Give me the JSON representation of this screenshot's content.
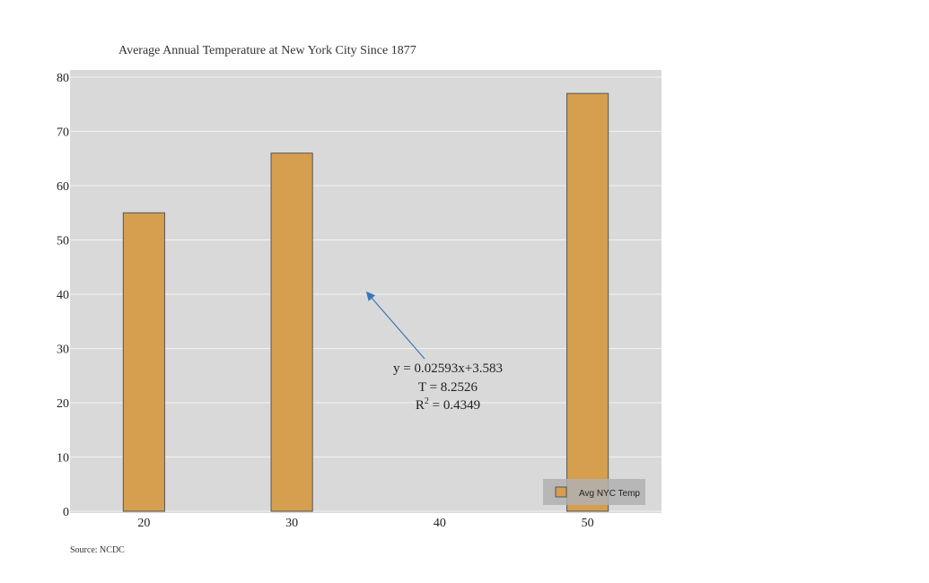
{
  "chart_data": {
    "type": "bar",
    "title": "Average Annual Temperature at New York City Since 1877",
    "xlabel": "",
    "ylabel": "",
    "x": [
      20,
      30,
      50
    ],
    "x_ticks": [
      "20",
      "30",
      "40",
      "50"
    ],
    "x_tick_values": [
      20,
      30,
      40,
      50
    ],
    "xlim": [
      15,
      55
    ],
    "y_ticks": [
      "0",
      "10",
      "20",
      "30",
      "40",
      "50",
      "60",
      "70",
      "80"
    ],
    "ylim": [
      0,
      80
    ],
    "series": [
      {
        "name": "Avg NYC Temp",
        "values": [
          55,
          66,
          77
        ]
      }
    ],
    "grid": true,
    "legend_position": "bottom-right",
    "annotation": {
      "line1": "y = 0.02593x+3.583",
      "line2": "T = 8.2526",
      "line3_prefix": "R",
      "line3_sup": "2",
      "line3_suffix": " = 0.4349",
      "arrow_points_to": {
        "x": 35,
        "y": 40.5
      }
    },
    "source": "Source: NCDC",
    "colors": {
      "bar": "#d69e4f",
      "bar_edge": "#555555",
      "plot_bg": "#d9d9d9",
      "grid": "#f2f2f2",
      "arrow": "#3a78b5",
      "legend_bg": "#b0b0b0"
    }
  }
}
